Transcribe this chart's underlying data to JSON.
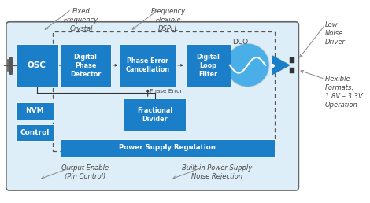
{
  "fig_w": 4.7,
  "fig_h": 2.58,
  "dpi": 100,
  "bg_light": "#ddeef8",
  "blue": "#1a7ec8",
  "blue_circle": "#4aaee8",
  "white": "#ffffff",
  "dark": "#444444",
  "gray_arrow": "#888888",
  "outer_bg": "#e8f3fb",
  "labels": {
    "osc": "OSC",
    "dpd": "Digital\nPhase\nDetector",
    "pec": "Phase Error\nCancellation",
    "dlf": "Digital\nLoop\nFilter",
    "fd": "Fractional\nDivider",
    "nvm": "NVM",
    "ctrl": "Control",
    "psr": "Power Supply Regulation",
    "dco": "DCO"
  },
  "ann": {
    "fixed_freq": "Fixed\nFrequency\nCrystal",
    "freq_flex": "Frequency\nFlexible\nDSPLL",
    "low_noise": "Low\nNoise\nDriver",
    "flex_fmt": "Flexible\nFormats,\n1.8V – 3.3V\nOperation",
    "out_en": "Output Enable\n(Pin Control)",
    "builtin": "Built-in Power Supply\nNoise Rejection",
    "phase_err": "Phase Error"
  }
}
